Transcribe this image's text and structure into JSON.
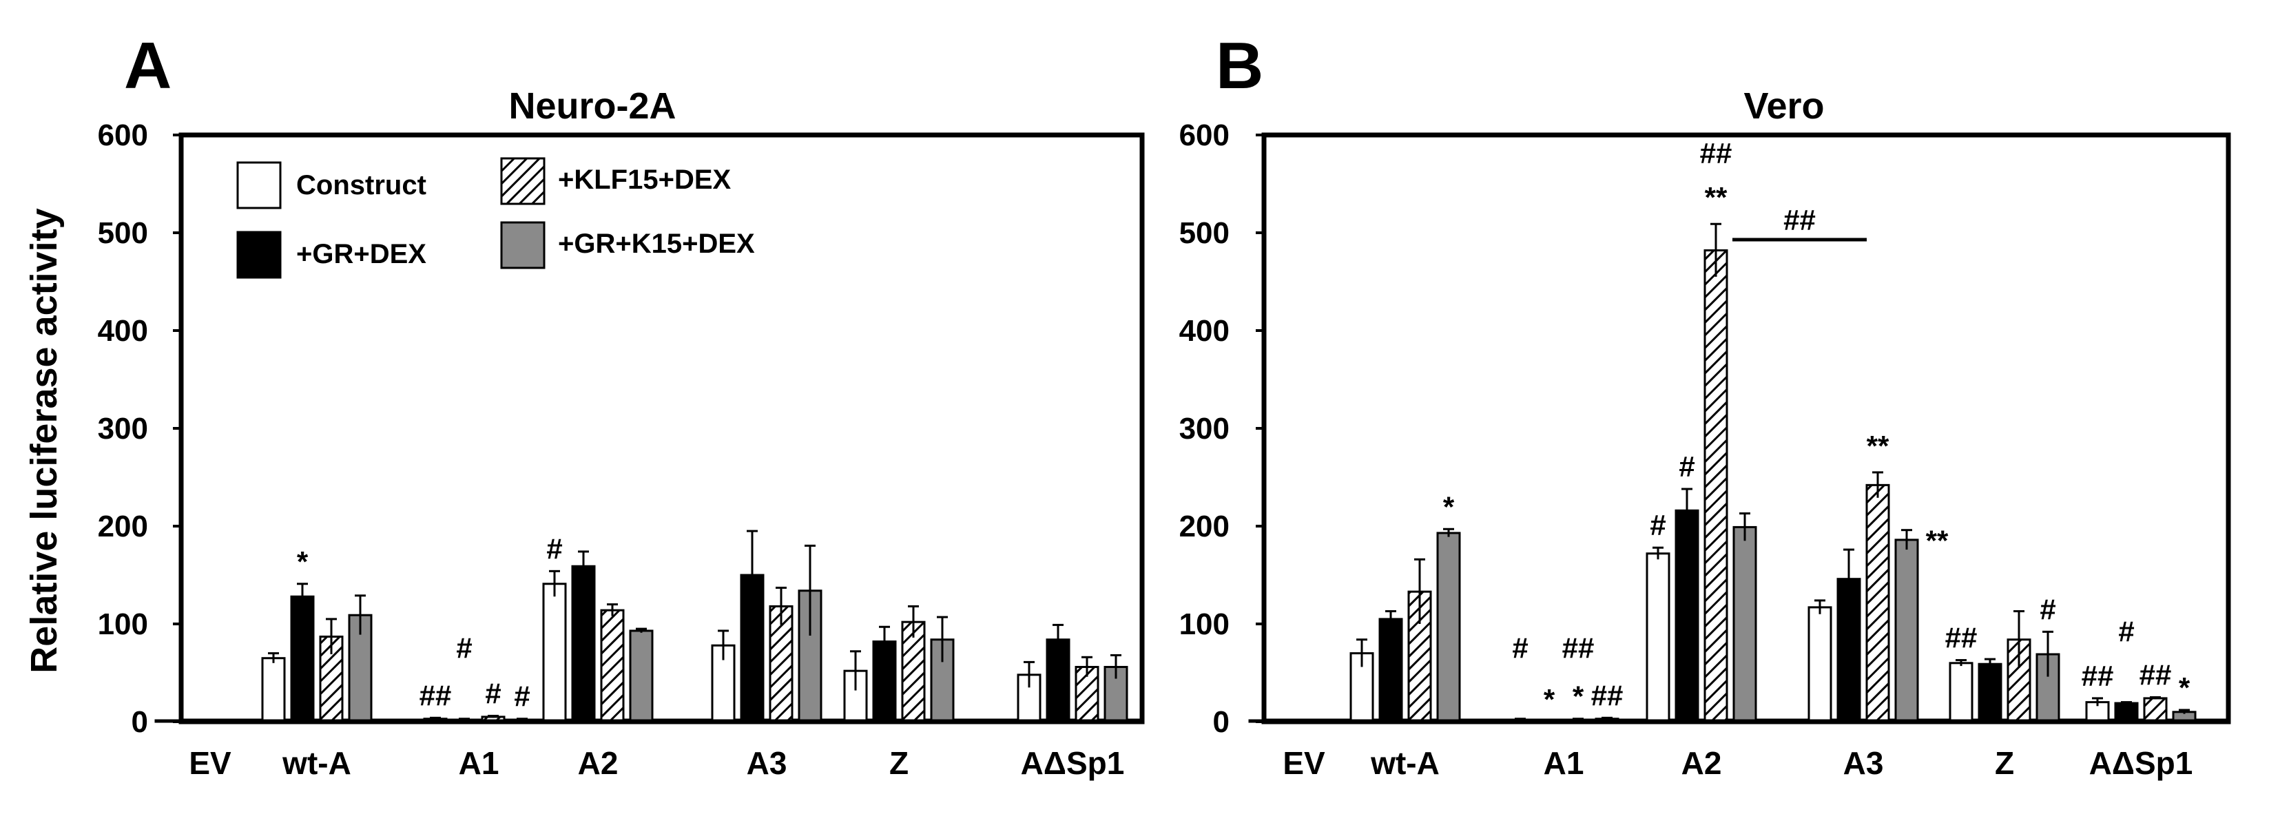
{
  "y_axis_label": "Relative luciferase activity",
  "legend": [
    {
      "label": "Construct",
      "pattern": "white"
    },
    {
      "label": "+GR+DEX",
      "pattern": "black"
    },
    {
      "label": "+KLF15+DEX",
      "pattern": "hatched"
    },
    {
      "label": "+GR+K15+DEX",
      "pattern": "gray"
    }
  ],
  "colors": {
    "construct": "#ffffff",
    "gr_dex": "#000000",
    "klf15_dex": "hatched",
    "gr_k15_dex": "#8a8a8a"
  },
  "chart_data": [
    {
      "panel": "A",
      "type": "bar",
      "title": "Neuro-2A",
      "ylabel": "Relative luciferase activity",
      "ylim": [
        0,
        600
      ],
      "yticks": [
        "0",
        "100",
        "200",
        "300",
        "400",
        "500",
        "600"
      ],
      "categories": [
        "EV",
        "wt-A",
        "A1",
        "A2",
        "A3",
        "Z",
        "AΔSp1"
      ],
      "series": [
        {
          "name": "Construct",
          "values": [
            1,
            65,
            3,
            141,
            78,
            52,
            48
          ],
          "errors": [
            0,
            5,
            1,
            13,
            15,
            20,
            13
          ]
        },
        {
          "name": "+GR+DEX",
          "values": [
            null,
            128,
            2,
            159,
            150,
            82,
            84
          ],
          "errors": [
            0,
            13,
            1,
            15,
            45,
            15,
            15
          ]
        },
        {
          "name": "+KLF15+DEX",
          "values": [
            null,
            87,
            5,
            114,
            118,
            102,
            56
          ],
          "errors": [
            0,
            18,
            1,
            6,
            19,
            16,
            10
          ]
        },
        {
          "name": "+GR+K15+DEX",
          "values": [
            null,
            109,
            2,
            93,
            134,
            84,
            56
          ],
          "errors": [
            0,
            20,
            1,
            2,
            46,
            23,
            12
          ]
        }
      ],
      "annotations": [
        {
          "text": "*",
          "category": "wt-A",
          "series": 1
        },
        {
          "text": "##",
          "category": "A1",
          "series": 0
        },
        {
          "text": "#",
          "category": "A1",
          "series": 1,
          "raised": true
        },
        {
          "text": "#",
          "category": "A1",
          "series": 2
        },
        {
          "text": "#",
          "category": "A1",
          "series": 3
        },
        {
          "text": "#",
          "category": "A2",
          "series": 0
        }
      ]
    },
    {
      "panel": "B",
      "type": "bar",
      "title": "Vero",
      "ylabel": "",
      "ylim": [
        0,
        600
      ],
      "yticks": [
        "0",
        "100",
        "200",
        "300",
        "400",
        "500",
        "600"
      ],
      "categories": [
        "EV",
        "wt-A",
        "A1",
        "A2",
        "A3",
        "Z",
        "AΔSp1"
      ],
      "series": [
        {
          "name": "Construct",
          "values": [
            1,
            70,
            2,
            172,
            117,
            60,
            20
          ],
          "errors": [
            0,
            14,
            1,
            6,
            7,
            3,
            4
          ]
        },
        {
          "name": "+GR+DEX",
          "values": [
            null,
            105,
            null,
            216,
            146,
            59,
            19
          ],
          "errors": [
            0,
            8,
            0,
            22,
            30,
            5,
            1
          ]
        },
        {
          "name": "+KLF15+DEX",
          "values": [
            null,
            133,
            2,
            482,
            242,
            84,
            24
          ],
          "errors": [
            0,
            33,
            1,
            27,
            13,
            29,
            1
          ]
        },
        {
          "name": "+GR+K15+DEX",
          "values": [
            null,
            193,
            3,
            199,
            186,
            69,
            10
          ],
          "errors": [
            0,
            4,
            1,
            14,
            10,
            23,
            2
          ]
        }
      ],
      "annotations": [
        {
          "text": "*",
          "category": "wt-A",
          "series": 3
        },
        {
          "text": "#",
          "category": "A1",
          "series": 0,
          "raised": true
        },
        {
          "text": "##",
          "category": "A1",
          "series": 2,
          "raised": true
        },
        {
          "text": "*",
          "category": "A1",
          "series": 1
        },
        {
          "text": "*",
          "category": "A1",
          "series": 2
        },
        {
          "text": "##",
          "category": "A1",
          "series": 3
        },
        {
          "text": "#",
          "category": "A2",
          "series": 0
        },
        {
          "text": "#",
          "category": "A2",
          "series": 1
        },
        {
          "text": "**",
          "category": "A2",
          "series": 2
        },
        {
          "text": "##",
          "category": "A2",
          "series": 2,
          "raised": true
        },
        {
          "text": "**",
          "category": "A3",
          "series": 2
        },
        {
          "text": "**",
          "category": "A3",
          "series": 3,
          "side": true
        },
        {
          "text": "##",
          "category": "Z",
          "series": 0
        },
        {
          "text": "#",
          "category": "Z",
          "series": 3
        },
        {
          "text": "##",
          "category": "AΔSp1",
          "series": 0
        },
        {
          "text": "#",
          "category": "AΔSp1",
          "series": 1,
          "raised": true
        },
        {
          "text": "##",
          "category": "AΔSp1",
          "series": 2
        },
        {
          "text": "*",
          "category": "AΔSp1",
          "series": 3
        }
      ],
      "bracket": {
        "from": "A2",
        "to": "A3",
        "label": "##",
        "value": 493
      }
    }
  ]
}
